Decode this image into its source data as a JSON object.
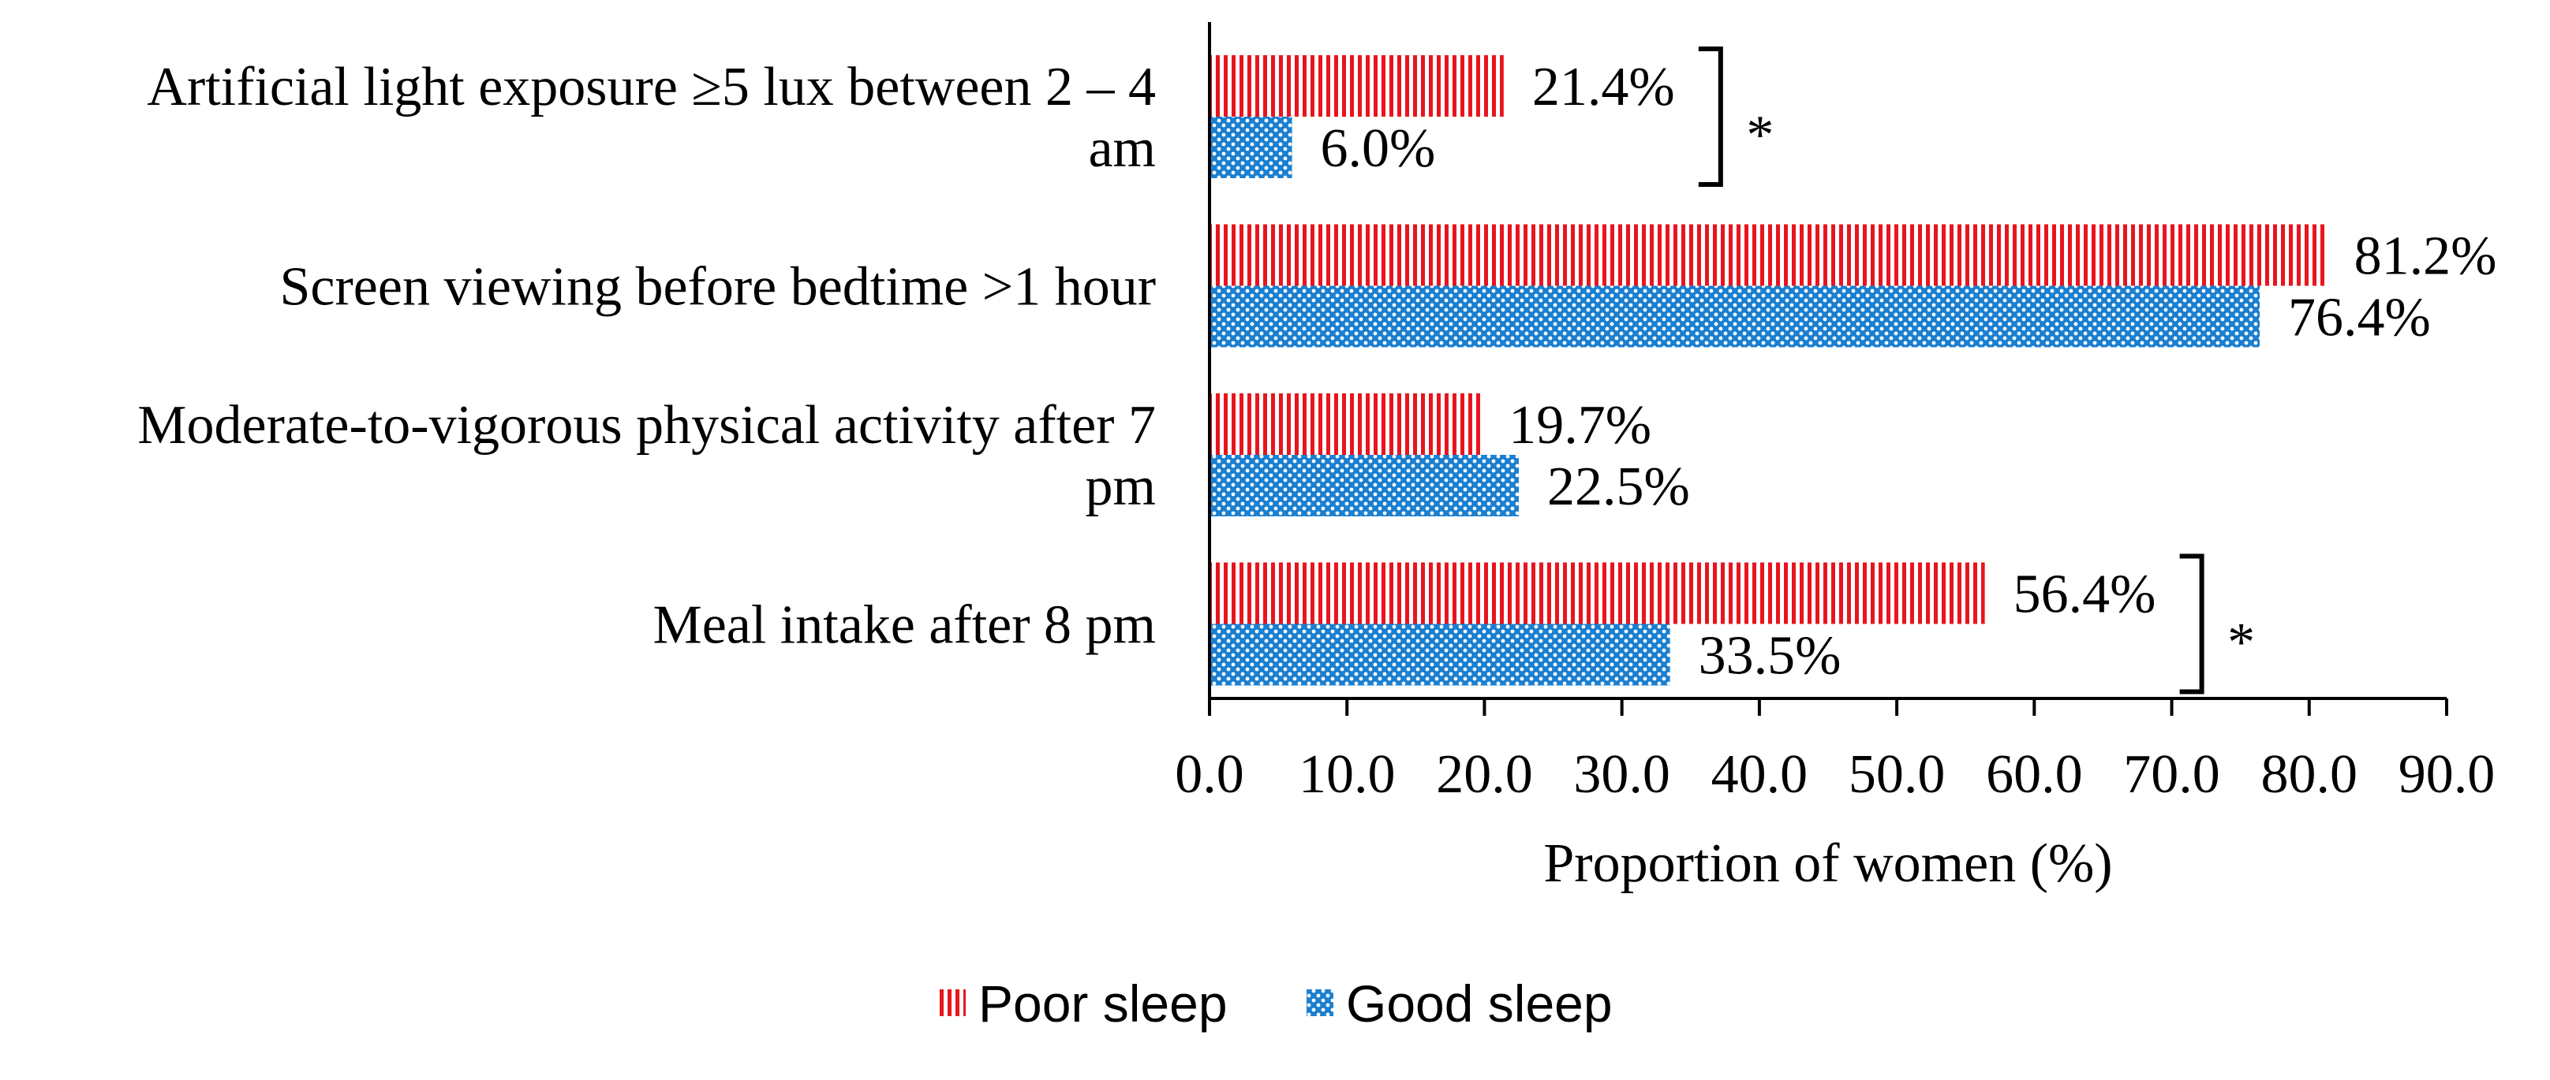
{
  "chart_data": {
    "type": "bar",
    "orientation": "horizontal",
    "title": "",
    "xlabel": "Proportion of women (%)",
    "ylabel": "",
    "xlim": [
      0,
      90
    ],
    "x_ticks": [
      "0.0",
      "10.0",
      "20.0",
      "30.0",
      "40.0",
      "50.0",
      "60.0",
      "70.0",
      "80.0",
      "90.0"
    ],
    "categories": [
      [
        "Artificial light exposure ≥5 lux between 2 – 4",
        "am"
      ],
      [
        "Screen viewing before bedtime >1 hour"
      ],
      [
        "Moderate-to-vigorous physical activity after 7",
        "pm"
      ],
      [
        "Meal intake after 8 pm"
      ]
    ],
    "series": [
      {
        "name": "Poor sleep",
        "pattern": "vertical-stripes",
        "color": "#e8141e",
        "values": [
          21.4,
          81.2,
          19.7,
          56.4
        ],
        "labels": [
          "21.4%",
          "81.2%",
          "19.7%",
          "56.4%"
        ]
      },
      {
        "name": "Good sleep",
        "pattern": "crosshatch-dots",
        "color": "#1a7fd0",
        "values": [
          6.0,
          76.4,
          22.5,
          33.5
        ],
        "labels": [
          "6.0%",
          "76.4%",
          "22.5%",
          "33.5%"
        ]
      }
    ],
    "significance": [
      {
        "category_index": 0,
        "marker": "*"
      },
      {
        "category_index": 3,
        "marker": "*"
      }
    ],
    "legend": {
      "position": "bottom-center",
      "entries": [
        "Poor sleep",
        "Good sleep"
      ]
    },
    "grid": false
  }
}
